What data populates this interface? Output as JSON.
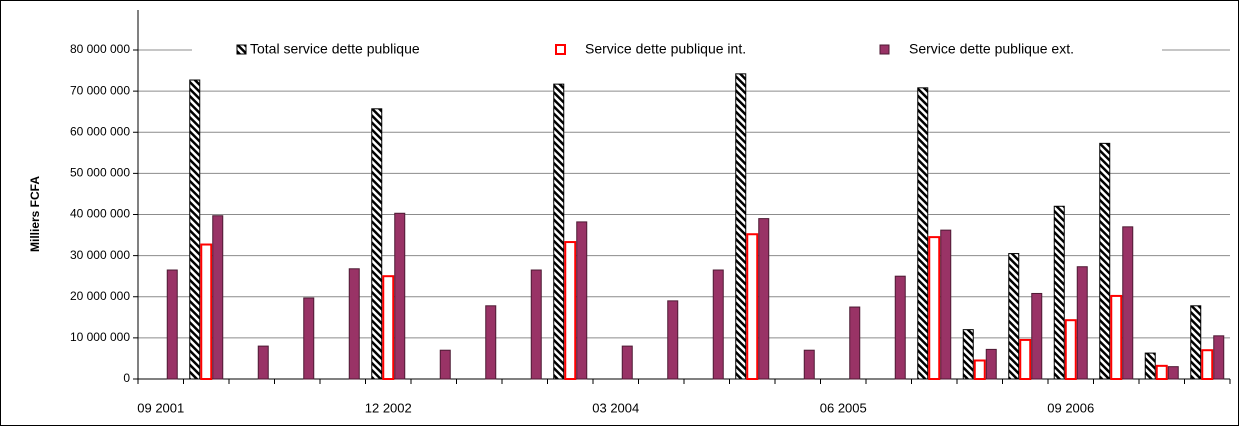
{
  "chart_data": {
    "type": "bar",
    "y_axis_label": "Milliers FCFA",
    "categories": [
      "09 2001",
      null,
      null,
      null,
      null,
      "12 2002",
      null,
      null,
      null,
      null,
      "03 2004",
      null,
      null,
      null,
      null,
      "06 2005",
      null,
      null,
      null,
      null,
      "09 2006",
      null,
      null,
      null
    ],
    "series": [
      {
        "name": "Total service dette publique",
        "color": "#000000",
        "pattern": "hatch",
        "values": [
          null,
          72700000,
          null,
          null,
          null,
          65700000,
          null,
          null,
          null,
          71700000,
          null,
          null,
          null,
          74200000,
          null,
          null,
          null,
          70800000,
          12000000,
          30500000,
          42000000,
          57300000,
          6300000,
          17800000
        ]
      },
      {
        "name": "Service dette publique int.",
        "color": "#ff0000",
        "pattern": "outline",
        "values": [
          null,
          32700000,
          null,
          null,
          null,
          25000000,
          null,
          null,
          null,
          33300000,
          null,
          null,
          null,
          35200000,
          null,
          null,
          null,
          34500000,
          4500000,
          9500000,
          14300000,
          20200000,
          3200000,
          7000000
        ]
      },
      {
        "name": "Service dette publique ext.",
        "color": "#993366",
        "pattern": "solid",
        "values": [
          26500000,
          39700000,
          8000000,
          19700000,
          26800000,
          40300000,
          7000000,
          17800000,
          26500000,
          38200000,
          8000000,
          19000000,
          26500000,
          39000000,
          7000000,
          17500000,
          25000000,
          36200000,
          7200000,
          20800000,
          27300000,
          37000000,
          3000000,
          10500000
        ]
      }
    ],
    "ylim": [
      0,
      80000000
    ],
    "yticks": [
      0,
      {
        "value": 10000000,
        "label": "10 000 000"
      },
      {
        "value": 20000000,
        "label": "20 000 000"
      },
      {
        "value": 30000000,
        "label": "30 000 000"
      },
      {
        "value": 40000000,
        "label": "40 000 000"
      },
      {
        "value": 50000000,
        "label": "50 000 000"
      },
      {
        "value": 60000000,
        "label": "60 000 000"
      },
      {
        "value": 70000000,
        "label": "70 000 000"
      },
      {
        "value": 80000000,
        "label": "80 000 000"
      }
    ],
    "grid": true,
    "legend": "top"
  }
}
